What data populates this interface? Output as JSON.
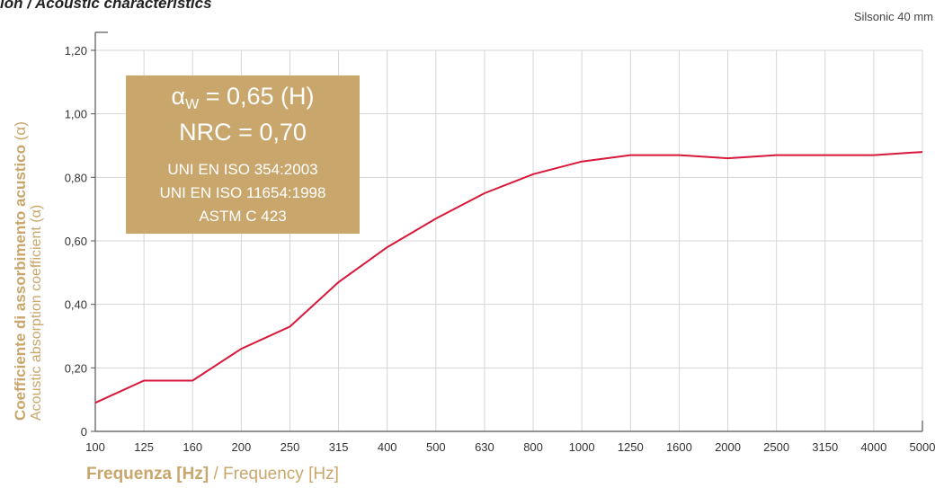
{
  "header": {
    "title": "ion / Acoustic characteristics",
    "series_caption": "Silsonic 40 mm"
  },
  "colors": {
    "line": "#d8183a",
    "grid": "#d6d6d6",
    "axis": "#555555",
    "accent": "#c9a66b",
    "box_bg": "#c9a66b",
    "box_text": "#ffffff"
  },
  "info_box": {
    "alpha_symbol": "α",
    "alpha_sub": "W",
    "alpha_value": " = 0,65 (H)",
    "nrc": "NRC = 0,70",
    "std1": "UNI EN ISO 354:2003",
    "std2": "UNI EN ISO 11654:1998",
    "std3": "ASTM C 423"
  },
  "chart_data": {
    "type": "line",
    "title": "",
    "xlabel_bold": "Frequenza [Hz]",
    "xlabel_rest": " / Frequency [Hz]",
    "ylabel_bold": "Coefficiente di assorbimento acustico",
    "ylabel_bold_suffix": " (α)",
    "ylabel_rest": "Acoustic absorption coefficient (α)",
    "x": [
      "100",
      "125",
      "160",
      "200",
      "250",
      "315",
      "400",
      "500",
      "630",
      "800",
      "1000",
      "1250",
      "1600",
      "2000",
      "2500",
      "3150",
      "4000",
      "5000"
    ],
    "y_ticks": [
      "0",
      "0,20",
      "0,40",
      "0,60",
      "0,80",
      "1,00",
      "1,20"
    ],
    "ylim": [
      0,
      1.2
    ],
    "grid": true,
    "series": [
      {
        "values": [
          0.09,
          0.16,
          0.16,
          0.26,
          0.33,
          0.47,
          0.58,
          0.67,
          0.75,
          0.81,
          0.85,
          0.87,
          0.87,
          0.86,
          0.87,
          0.87,
          0.87,
          0.88
        ]
      }
    ]
  }
}
